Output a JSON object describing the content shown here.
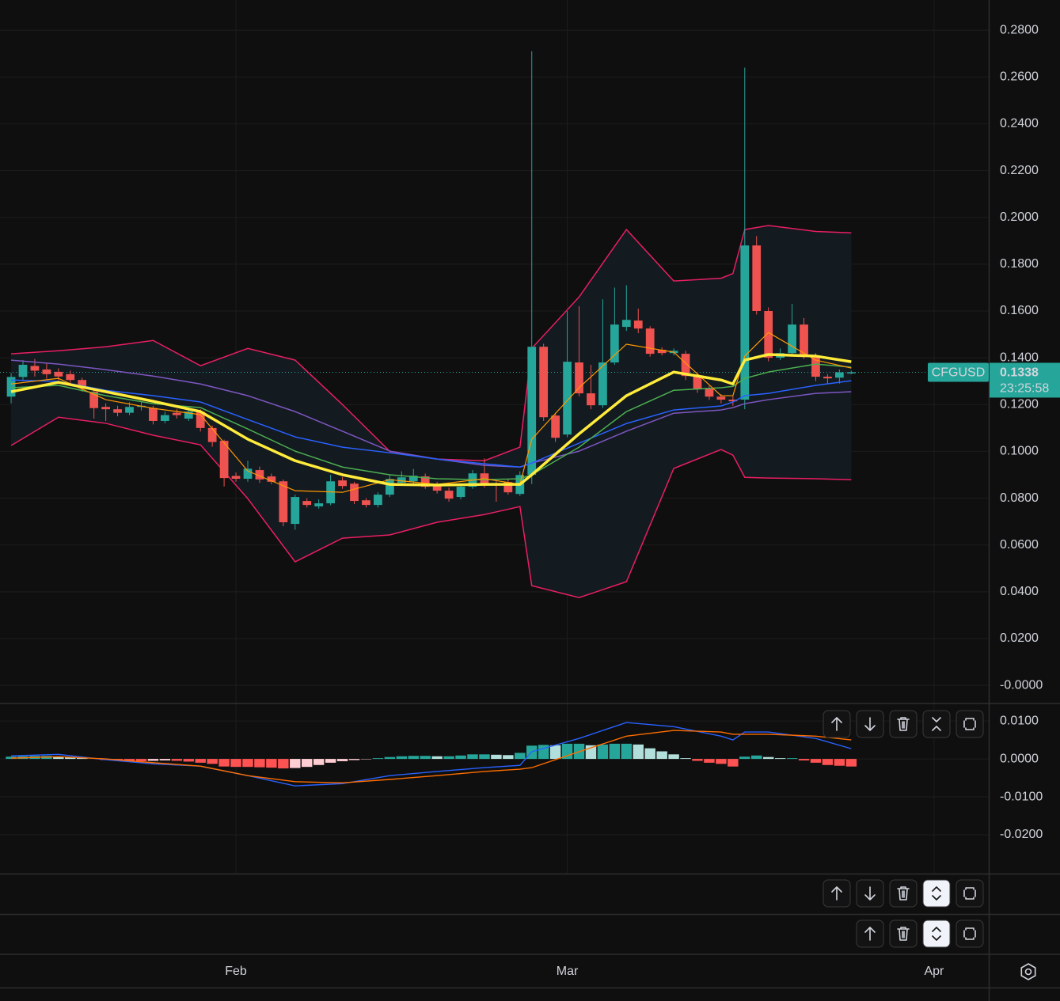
{
  "chart_data": [
    {
      "type": "candlestick",
      "symbol": "CFGUSD",
      "last_price": 0.1338,
      "countdown": "23:25:58",
      "up_color": "#26a69a",
      "down_color": "#ef5350",
      "open": [
        0.1234,
        0.1318,
        0.1365,
        0.135,
        0.134,
        0.133,
        0.1305,
        0.1255,
        0.119,
        0.118,
        0.1165,
        0.119,
        0.1185,
        0.113,
        0.1165,
        0.114,
        0.117,
        0.11,
        0.1045,
        0.0895,
        0.0883,
        0.092,
        0.0893,
        0.0872,
        0.069,
        0.0788,
        0.0765,
        0.0778,
        0.0876,
        0.0862,
        0.0791,
        0.0771,
        0.0815,
        0.0866,
        0.0872,
        0.0893,
        0.0859,
        0.0832,
        0.0805,
        0.0849,
        0.0906,
        0.0862,
        0.0869,
        0.0818,
        0.09,
        0.1447,
        0.1153,
        0.1072,
        0.138,
        0.1248,
        0.1197,
        0.138,
        0.1532,
        0.1559,
        0.1525,
        0.1434,
        0.142,
        0.1417,
        0.1322,
        0.1268,
        0.1234,
        0.1221,
        0.1221,
        0.188,
        0.16,
        0.14,
        0.142,
        0.1542,
        0.1407,
        0.1319,
        0.1315,
        0.1333
      ],
      "high": [
        0.1335,
        0.139,
        0.1395,
        0.1375,
        0.1355,
        0.1345,
        0.1315,
        0.127,
        0.1205,
        0.1195,
        0.121,
        0.1215,
        0.1195,
        0.117,
        0.118,
        0.1185,
        0.118,
        0.111,
        0.105,
        0.091,
        0.096,
        0.0935,
        0.0905,
        0.088,
        0.0815,
        0.08,
        0.0795,
        0.09,
        0.089,
        0.087,
        0.08,
        0.0825,
        0.09,
        0.0915,
        0.0925,
        0.0905,
        0.087,
        0.0845,
        0.086,
        0.092,
        0.097,
        0.0875,
        0.088,
        0.0915,
        0.271,
        0.146,
        0.1165,
        0.16,
        0.162,
        0.137,
        0.165,
        0.17,
        0.171,
        0.161,
        0.1535,
        0.1445,
        0.144,
        0.143,
        0.1335,
        0.128,
        0.1245,
        0.1235,
        0.264,
        0.192,
        0.1615,
        0.144,
        0.163,
        0.157,
        0.142,
        0.133,
        0.135,
        0.1345
      ],
      "low": [
        0.1205,
        0.13,
        0.132,
        0.131,
        0.1305,
        0.129,
        0.1255,
        0.114,
        0.113,
        0.115,
        0.1155,
        0.1175,
        0.1115,
        0.112,
        0.114,
        0.113,
        0.1085,
        0.102,
        0.085,
        0.087,
        0.087,
        0.0865,
        0.086,
        0.068,
        0.0665,
        0.076,
        0.0755,
        0.077,
        0.084,
        0.0775,
        0.076,
        0.076,
        0.0805,
        0.0855,
        0.086,
        0.084,
        0.082,
        0.0785,
        0.0795,
        0.084,
        0.0845,
        0.0785,
        0.0815,
        0.081,
        0.086,
        0.113,
        0.104,
        0.106,
        0.1235,
        0.118,
        0.1185,
        0.137,
        0.1515,
        0.1505,
        0.1405,
        0.141,
        0.141,
        0.1305,
        0.125,
        0.122,
        0.1205,
        0.1195,
        0.118,
        0.1585,
        0.1385,
        0.139,
        0.141,
        0.1395,
        0.13,
        0.129,
        0.129,
        0.133
      ],
      "close": [
        0.1318,
        0.137,
        0.1345,
        0.133,
        0.132,
        0.1305,
        0.127,
        0.1185,
        0.118,
        0.1165,
        0.119,
        0.1195,
        0.113,
        0.1155,
        0.1155,
        0.117,
        0.11,
        0.104,
        0.0886,
        0.0883,
        0.0926,
        0.088,
        0.087,
        0.0697,
        0.0805,
        0.0771,
        0.0778,
        0.0872,
        0.0852,
        0.0788,
        0.0771,
        0.0815,
        0.0882,
        0.0889,
        0.0896,
        0.0849,
        0.0832,
        0.0798,
        0.0849,
        0.0906,
        0.0859,
        0.0855,
        0.0825,
        0.0899,
        0.1447,
        0.1146,
        0.1058,
        0.1383,
        0.1248,
        0.1197,
        0.138,
        0.1542,
        0.1562,
        0.1525,
        0.1417,
        0.142,
        0.143,
        0.1322,
        0.1268,
        0.1234,
        0.1221,
        0.1214,
        0.188,
        0.16,
        0.14,
        0.142,
        0.1542,
        0.1407,
        0.1319,
        0.1312,
        0.1338,
        0.1338
      ],
      "overlays": {
        "x": [
          0,
          4,
          8,
          12,
          16,
          20,
          24,
          28,
          32,
          36,
          40,
          43,
          44,
          48,
          52,
          56,
          60,
          61,
          62,
          64,
          68,
          71
        ],
        "bands": {
          "color": "#e91e63",
          "fill": "#131a20",
          "upper": [
            0.1417,
            0.143,
            0.1447,
            0.1474,
            0.1366,
            0.144,
            0.139,
            0.12,
            0.1,
            0.0967,
            0.096,
            0.1018,
            0.144,
            0.166,
            0.1948,
            0.1728,
            0.174,
            0.176,
            0.1948,
            0.1965,
            0.194,
            0.1934
          ],
          "lower": [
            0.1025,
            0.1146,
            0.112,
            0.1069,
            0.1028,
            0.0798,
            0.0528,
            0.0629,
            0.0643,
            0.0697,
            0.073,
            0.0764,
            0.0426,
            0.0375,
            0.0443,
            0.0927,
            0.1008,
            0.0984,
            0.0889,
            0.0886,
            0.0883,
            0.0879
          ]
        },
        "series": [
          {
            "color": "#7e57c2",
            "line_width": 1.5,
            "values": [
              0.139,
              0.1373,
              0.1349,
              0.1322,
              0.1288,
              0.1238,
              0.117,
              0.1086,
              0.1001,
              0.0967,
              0.094,
              0.0933,
              0.095,
              0.1001,
              0.1086,
              0.1163,
              0.1177,
              0.1187,
              0.1204,
              0.1221,
              0.1248,
              0.1255
            ]
          },
          {
            "color": "#2962ff",
            "line_width": 1.5,
            "values": [
              0.1305,
              0.1299,
              0.1261,
              0.1238,
              0.1211,
              0.1136,
              0.1062,
              0.1018,
              0.0994,
              0.0967,
              0.0947,
              0.0933,
              0.095,
              0.1035,
              0.1119,
              0.1177,
              0.1194,
              0.1211,
              0.1238,
              0.1248,
              0.1282,
              0.1302
            ]
          },
          {
            "color": "#4caf50",
            "line_width": 1.5,
            "values": [
              0.1272,
              0.1282,
              0.1238,
              0.1204,
              0.1187,
              0.1096,
              0.1001,
              0.0933,
              0.09,
              0.0883,
              0.0879,
              0.0883,
              0.09,
              0.1018,
              0.117,
              0.1261,
              0.1272,
              0.1278,
              0.1312,
              0.1339,
              0.1373,
              0.136
            ]
          },
          {
            "color": "#ff9800",
            "line_width": 1.2,
            "values": [
              0.1288,
              0.1312,
              0.1221,
              0.1184,
              0.1157,
              0.0916,
              0.0832,
              0.0825,
              0.0879,
              0.0859,
              0.0883,
              0.0859,
              0.1052,
              0.1272,
              0.1458,
              0.1424,
              0.1238,
              0.1238,
              0.1407,
              0.1508,
              0.139,
              0.1356
            ]
          },
          {
            "color": "#ffeb3b",
            "line_width": 3.5,
            "values": [
              0.1255,
              0.1295,
              0.1255,
              0.1214,
              0.117,
              0.1052,
              0.096,
              0.09,
              0.0859,
              0.0856,
              0.0859,
              0.0859,
              0.09,
              0.1075,
              0.1238,
              0.1339,
              0.1305,
              0.1288,
              0.139,
              0.1414,
              0.1407,
              0.1383
            ]
          }
        ]
      },
      "xlim": [
        -0.94,
        82.62
      ],
      "xticks": [
        {
          "value": 19,
          "label": "Feb"
        },
        {
          "value": 47,
          "label": "Mar"
        },
        {
          "value": 78,
          "label": "Apr"
        }
      ],
      "ylim": [
        -0.0074,
        0.2929
      ],
      "yticks": [
        {
          "value": 0.28,
          "label": "0.2800"
        },
        {
          "value": 0.26,
          "label": "0.2600"
        },
        {
          "value": 0.24,
          "label": "0.2400"
        },
        {
          "value": 0.22,
          "label": "0.2200"
        },
        {
          "value": 0.2,
          "label": "0.2000"
        },
        {
          "value": 0.18,
          "label": "0.1800"
        },
        {
          "value": 0.16,
          "label": "0.1600"
        },
        {
          "value": 0.14,
          "label": "0.1400"
        },
        {
          "value": 0.12,
          "label": "0.1200"
        },
        {
          "value": 0.1,
          "label": "0.1000"
        },
        {
          "value": 0.08,
          "label": "0.0800"
        },
        {
          "value": 0.06,
          "label": "0.0600"
        },
        {
          "value": 0.04,
          "label": "0.0400"
        },
        {
          "value": 0.02,
          "label": "0.0200"
        },
        {
          "value": 0,
          "label": "-0.0000"
        }
      ],
      "grid": true
    },
    {
      "type": "macd",
      "histogram": [
        0.0006,
        0.0007,
        0.0008,
        0.0008,
        0.0006,
        0.0005,
        0.0003,
        0,
        -0.0003,
        -0.0005,
        -0.0006,
        -0.0006,
        -0.0005,
        -0.0004,
        -0.0005,
        -0.0007,
        -0.001,
        -0.0013,
        -0.002,
        -0.0021,
        -0.0021,
        -0.0022,
        -0.0023,
        -0.0025,
        -0.0024,
        -0.0021,
        -0.0016,
        -0.001,
        -0.0006,
        -0.0003,
        -0.0001,
        0.0002,
        0.0005,
        0.0007,
        0.0008,
        0.0008,
        0.0007,
        0.0007,
        0.0009,
        0.0012,
        0.0012,
        0.0011,
        0.001,
        0.0016,
        0.0035,
        0.0037,
        0.0036,
        0.004,
        0.004,
        0.0036,
        0.0038,
        0.004,
        0.004,
        0.0038,
        0.0028,
        0.002,
        0.0012,
        0.0002,
        -0.0005,
        -0.001,
        -0.0013,
        -0.002,
        0.0006,
        0.0009,
        0.0005,
        0.0002,
        0.0002,
        -0.0004,
        -0.001,
        -0.0016,
        -0.0018,
        -0.002
      ],
      "histogram_colors": {
        "up_rising": "#26a69a",
        "up_falling": "#b2dfdb",
        "down_falling": "#ff5252",
        "down_rising": "#ffcdd2"
      },
      "x": [
        0,
        4,
        8,
        12,
        16,
        20,
        24,
        28,
        32,
        36,
        40,
        43,
        44,
        48,
        52,
        56,
        60,
        61,
        62,
        64,
        68,
        71
      ],
      "series": [
        {
          "color": "#2962ff",
          "values": [
            0.0008,
            0.0012,
            -0.0002,
            -0.0013,
            -0.0019,
            -0.0044,
            -0.0071,
            -0.0065,
            -0.0044,
            -0.0033,
            -0.0023,
            -0.0017,
            0.0019,
            0.0054,
            0.0096,
            0.0085,
            0.006,
            0.005,
            0.0071,
            0.0071,
            0.0054,
            0.0027
          ]
        },
        {
          "color": "#ff6d00",
          "values": [
            0.0002,
            0.0006,
            0,
            -0.001,
            -0.0019,
            -0.0044,
            -0.006,
            -0.0063,
            -0.0054,
            -0.0044,
            -0.0033,
            -0.0027,
            -0.0023,
            0.0019,
            0.006,
            0.0075,
            0.0071,
            0.0065,
            0.0065,
            0.0065,
            0.006,
            0.005
          ]
        }
      ],
      "ylim": [
        -0.03,
        0.0144
      ],
      "yticks": [
        {
          "value": 0.01,
          "label": "0.0100"
        },
        {
          "value": 0,
          "label": "0.0000"
        },
        {
          "value": -0.01,
          "label": "-0.0100"
        },
        {
          "value": -0.02,
          "label": "-0.0200"
        }
      ],
      "grid": true
    }
  ]
}
